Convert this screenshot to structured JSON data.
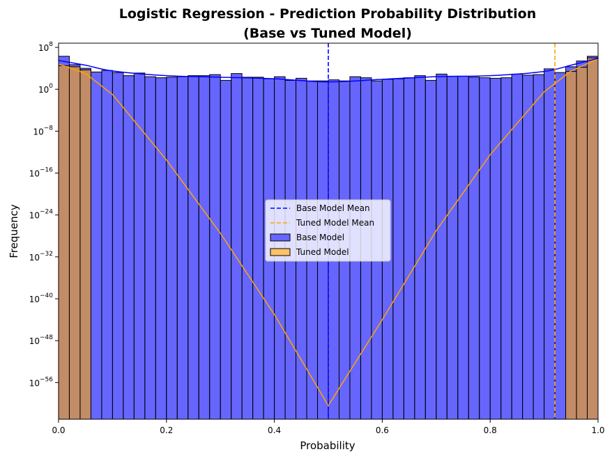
{
  "chart_data": {
    "type": "histogram",
    "title_line1": "Logistic Regression - Prediction Probability Distribution",
    "title_line2": "(Base vs Tuned Model)",
    "xlabel": "Probability",
    "ylabel": "Frequency",
    "xlim": [
      0,
      1
    ],
    "yscale": "log",
    "ylim_log10": [
      -63,
      8.8
    ],
    "x_ticks": [
      "0.0",
      "0.2",
      "0.4",
      "0.6",
      "0.8",
      "1.0"
    ],
    "x_tick_values": [
      0,
      0.2,
      0.4,
      0.6,
      0.8,
      1.0
    ],
    "y_ticks": [
      {
        "base": "10",
        "exp": "−56",
        "value": -56
      },
      {
        "base": "10",
        "exp": "−48",
        "value": -48
      },
      {
        "base": "10",
        "exp": "−40",
        "value": -40
      },
      {
        "base": "10",
        "exp": "−32",
        "value": -32
      },
      {
        "base": "10",
        "exp": "−24",
        "value": -24
      },
      {
        "base": "10",
        "exp": "−16",
        "value": -16
      },
      {
        "base": "10",
        "exp": "−8",
        "value": -8
      },
      {
        "base": "10",
        "exp": "0",
        "value": 0
      },
      {
        "base": "10",
        "exp": "8",
        "value": 8
      }
    ],
    "base_model": {
      "name": "Base Model",
      "color": "#0000ff",
      "bin_width": 0.02,
      "bin_start": 0.0,
      "log10_counts": [
        6.3,
        4.7,
        4.0,
        3.3,
        3.6,
        3.2,
        2.6,
        3.1,
        2.4,
        2.2,
        2.3,
        2.4,
        2.6,
        2.6,
        2.8,
        1.7,
        3.0,
        2.3,
        2.3,
        2.0,
        2.4,
        1.7,
        2.1,
        1.6,
        1.6,
        1.8,
        1.6,
        2.4,
        2.2,
        1.6,
        1.9,
        2.0,
        2.2,
        2.6,
        1.7,
        2.9,
        2.5,
        2.5,
        2.3,
        2.2,
        2.1,
        2.2,
        2.9,
        2.7,
        2.8,
        3.9,
        3.2,
        4.3,
        5.4,
        6.3
      ],
      "kde_log10": [
        [
          0.0,
          5.5
        ],
        [
          0.05,
          4.6
        ],
        [
          0.1,
          3.5
        ],
        [
          0.2,
          2.6
        ],
        [
          0.3,
          2.3
        ],
        [
          0.4,
          2.0
        ],
        [
          0.5,
          1.4
        ],
        [
          0.6,
          1.9
        ],
        [
          0.7,
          2.4
        ],
        [
          0.8,
          2.6
        ],
        [
          0.9,
          3.4
        ],
        [
          0.95,
          4.6
        ],
        [
          1.0,
          5.9
        ]
      ],
      "mean": 0.5
    },
    "tuned_model": {
      "name": "Tuned Model",
      "color": "#ffa500",
      "bin_width": 0.02,
      "bins_log10": [
        [
          0.0,
          4.5
        ],
        [
          0.02,
          4.3
        ],
        [
          0.04,
          3.7
        ],
        [
          0.94,
          3.4
        ],
        [
          0.96,
          4.2
        ],
        [
          0.98,
          6.0
        ]
      ],
      "kde_log10": [
        [
          0.0,
          4.8
        ],
        [
          0.02,
          4.1
        ],
        [
          0.05,
          3.0
        ],
        [
          0.1,
          -1.0
        ],
        [
          0.2,
          -13.5
        ],
        [
          0.3,
          -27.5
        ],
        [
          0.4,
          -43.0
        ],
        [
          0.5,
          -60.4
        ],
        [
          0.6,
          -44.0
        ],
        [
          0.7,
          -27.0
        ],
        [
          0.8,
          -12.5
        ],
        [
          0.9,
          -0.5
        ],
        [
          0.95,
          3.5
        ],
        [
          1.0,
          5.8
        ]
      ],
      "mean": 0.92
    },
    "legend": {
      "position": "center",
      "entries": [
        {
          "label": "Base Model Mean",
          "kind": "dashed-line",
          "color": "#0000ff"
        },
        {
          "label": "Tuned Model Mean",
          "kind": "dashed-line",
          "color": "#ffa500"
        },
        {
          "label": "Base Model",
          "kind": "patch",
          "color": "#6666ff"
        },
        {
          "label": "Tuned Model",
          "kind": "patch",
          "color": "#ffc266"
        }
      ]
    }
  }
}
